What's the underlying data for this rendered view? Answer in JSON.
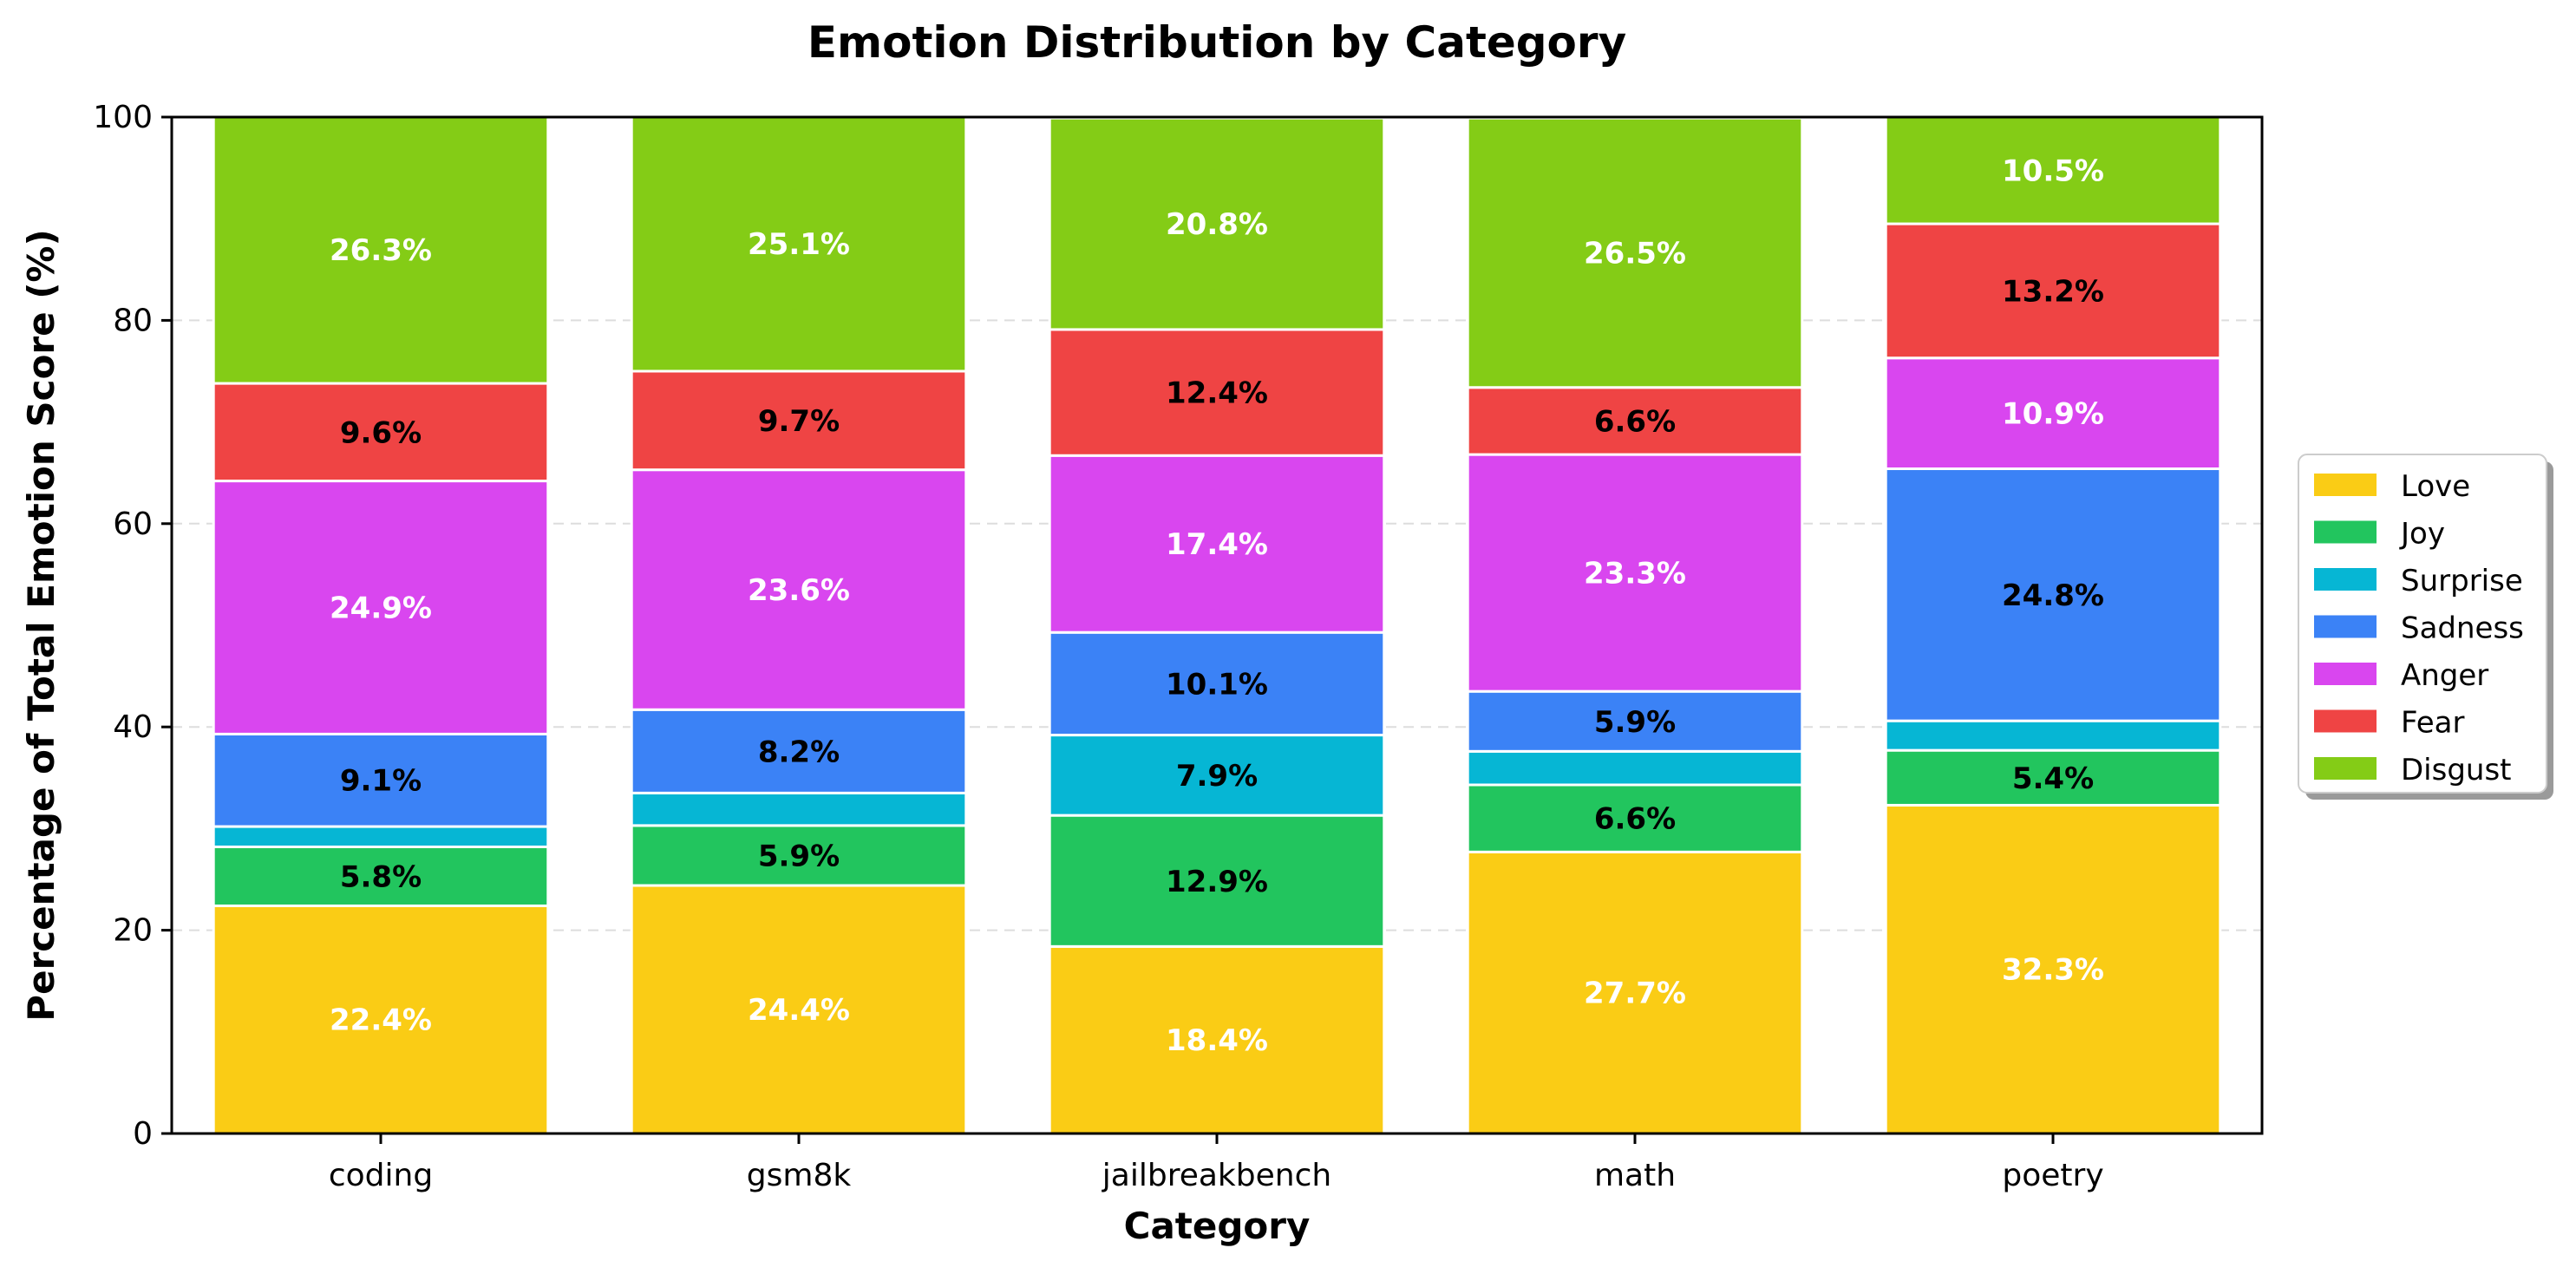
{
  "chart_data": {
    "type": "bar",
    "stacked": true,
    "title": "Emotion Distribution by Category",
    "xlabel": "Category",
    "ylabel": "Percentage of Total Emotion Score (%)",
    "ylim": [
      0,
      100
    ],
    "yticks": [
      0,
      20,
      40,
      60,
      80,
      100
    ],
    "grid": "y-dashed",
    "legend": "right",
    "categories": [
      "coding",
      "gsm8k",
      "jailbreakbench",
      "math",
      "poetry"
    ],
    "series": [
      {
        "name": "Love",
        "color": "#FACC15",
        "label_color": "#ffffff",
        "values": [
          22.4,
          24.4,
          18.4,
          27.7,
          32.3
        ]
      },
      {
        "name": "Joy",
        "color": "#22C55E",
        "label_color": "#000000",
        "values": [
          5.8,
          5.9,
          12.9,
          6.6,
          5.4
        ]
      },
      {
        "name": "Surprise",
        "color": "#06B6D4",
        "label_color": "#000000",
        "values": [
          2.0,
          3.2,
          7.9,
          3.3,
          2.9
        ]
      },
      {
        "name": "Sadness",
        "color": "#3B82F6",
        "label_color": "#000000",
        "values": [
          9.1,
          8.2,
          10.1,
          5.9,
          24.8
        ]
      },
      {
        "name": "Anger",
        "color": "#D946EF",
        "label_color": "#ffffff",
        "values": [
          24.9,
          23.6,
          17.4,
          23.3,
          10.9
        ]
      },
      {
        "name": "Fear",
        "color": "#EF4444",
        "label_color": "#000000",
        "values": [
          9.6,
          9.7,
          12.4,
          6.6,
          13.2
        ]
      },
      {
        "name": "Disgust",
        "color": "#84CC16",
        "label_color": "#ffffff",
        "values": [
          26.3,
          25.1,
          20.8,
          26.5,
          10.5
        ]
      }
    ],
    "label_format": "{v}%",
    "label_min": 5
  }
}
